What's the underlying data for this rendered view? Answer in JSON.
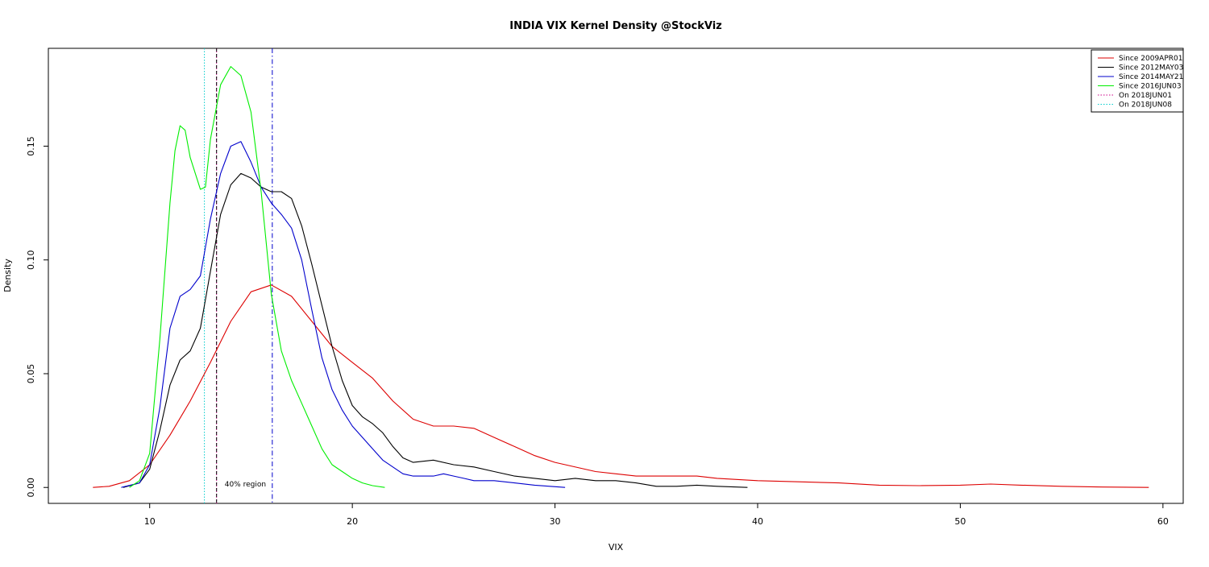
{
  "chart_data": {
    "type": "line",
    "title": "INDIA VIX Kernel Density @StockViz",
    "xlabel": "VIX",
    "ylabel": "Density",
    "xlim": [
      5,
      61
    ],
    "ylim": [
      -0.007,
      0.193
    ],
    "x_ticks": [
      10,
      20,
      30,
      40,
      50,
      60
    ],
    "x_tick_labels": [
      "10",
      "20",
      "30",
      "40",
      "50",
      "60"
    ],
    "y_ticks": [
      0.0,
      0.05,
      0.1,
      0.15
    ],
    "y_tick_labels": [
      "0.00",
      "0.05",
      "0.10",
      "0.15"
    ],
    "legend_position": "top-right",
    "series": [
      {
        "name": "Since 2009APR01",
        "color": "#dd0000",
        "x": [
          7.2,
          8,
          9,
          10,
          11,
          12,
          13,
          14,
          15,
          16,
          17,
          18,
          19,
          20,
          21,
          22,
          23,
          24,
          25,
          26,
          27,
          28,
          29,
          30,
          32,
          34,
          36,
          37,
          38,
          40,
          42,
          44,
          46,
          48,
          50,
          51.5,
          53,
          55,
          57,
          59.3
        ],
        "y": [
          0.0,
          0.0005,
          0.003,
          0.01,
          0.023,
          0.038,
          0.055,
          0.073,
          0.086,
          0.089,
          0.084,
          0.073,
          0.062,
          0.055,
          0.048,
          0.038,
          0.03,
          0.027,
          0.027,
          0.026,
          0.022,
          0.018,
          0.014,
          0.011,
          0.007,
          0.005,
          0.005,
          0.005,
          0.004,
          0.003,
          0.0025,
          0.002,
          0.001,
          0.0008,
          0.001,
          0.0015,
          0.001,
          0.0005,
          0.0002,
          0.0
        ]
      },
      {
        "name": "Since 2012MAY03",
        "color": "#000000",
        "x": [
          8.7,
          9.5,
          10,
          10.5,
          11,
          11.5,
          12,
          12.5,
          13,
          13.5,
          14,
          14.5,
          15,
          15.5,
          16,
          16.5,
          17,
          17.5,
          18,
          18.5,
          19,
          19.5,
          20,
          20.5,
          21,
          21.5,
          22,
          22.5,
          23,
          24,
          25,
          26,
          27,
          28,
          29,
          30,
          31,
          32,
          33,
          34,
          35,
          36,
          37,
          38,
          39.5
        ],
        "y": [
          0.0,
          0.002,
          0.008,
          0.025,
          0.045,
          0.056,
          0.06,
          0.07,
          0.095,
          0.12,
          0.133,
          0.138,
          0.136,
          0.132,
          0.13,
          0.13,
          0.127,
          0.115,
          0.098,
          0.08,
          0.062,
          0.047,
          0.036,
          0.031,
          0.028,
          0.024,
          0.018,
          0.013,
          0.011,
          0.012,
          0.01,
          0.009,
          0.007,
          0.005,
          0.004,
          0.003,
          0.004,
          0.003,
          0.003,
          0.002,
          0.0005,
          0.0005,
          0.001,
          0.0005,
          0.0
        ]
      },
      {
        "name": "Since 2014MAY21",
        "color": "#0000cc",
        "x": [
          8.6,
          9.5,
          10,
          10.5,
          11,
          11.5,
          12,
          12.5,
          13,
          13.5,
          14,
          14.5,
          15,
          15.5,
          16,
          16.5,
          17,
          17.5,
          18,
          18.5,
          19,
          19.5,
          20,
          20.5,
          21,
          21.5,
          22,
          22.5,
          23,
          23.5,
          24,
          24.5,
          25,
          25.5,
          26,
          27,
          28,
          29,
          30.5
        ],
        "y": [
          0.0,
          0.002,
          0.01,
          0.035,
          0.07,
          0.084,
          0.087,
          0.093,
          0.118,
          0.138,
          0.15,
          0.152,
          0.143,
          0.132,
          0.125,
          0.12,
          0.114,
          0.1,
          0.078,
          0.057,
          0.043,
          0.034,
          0.027,
          0.022,
          0.017,
          0.012,
          0.009,
          0.006,
          0.005,
          0.005,
          0.005,
          0.006,
          0.005,
          0.004,
          0.003,
          0.003,
          0.002,
          0.001,
          0.0
        ]
      },
      {
        "name": "Since 2016JUN03",
        "color": "#00ee00",
        "x": [
          9.0,
          9.5,
          10,
          10.5,
          11,
          11.25,
          11.5,
          11.75,
          12,
          12.5,
          12.75,
          13,
          13.5,
          14,
          14.5,
          15,
          15.5,
          16,
          16.5,
          17,
          17.5,
          18,
          18.5,
          19,
          19.5,
          20,
          20.5,
          21,
          21.6
        ],
        "y": [
          0.0,
          0.003,
          0.015,
          0.065,
          0.125,
          0.148,
          0.159,
          0.157,
          0.145,
          0.131,
          0.132,
          0.153,
          0.177,
          0.185,
          0.181,
          0.165,
          0.13,
          0.085,
          0.06,
          0.047,
          0.037,
          0.027,
          0.017,
          0.01,
          0.007,
          0.004,
          0.002,
          0.0008,
          0.0
        ]
      }
    ],
    "vlines": [
      {
        "name": "On 2018JUN01",
        "x": 13.3,
        "color": "#cc0088",
        "style": "dotted"
      },
      {
        "name": "On 2018JUN08",
        "x": 12.7,
        "color": "#00cccc",
        "style": "dotted"
      },
      {
        "x": 13.3,
        "color": "#000000",
        "style": "dashed"
      },
      {
        "x": 16.05,
        "color": "#0000cc",
        "style": "dashdot"
      }
    ],
    "annotations": [
      {
        "text": "40% region",
        "x": 13.7,
        "y": 0.0
      }
    ]
  }
}
